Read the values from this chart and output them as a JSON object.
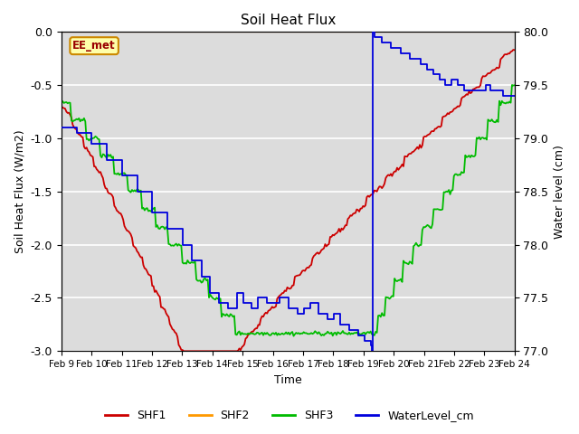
{
  "title": "Soil Heat Flux",
  "xlabel": "Time",
  "ylabel_left": "Soil Heat Flux (W/m2)",
  "ylabel_right": "Water level (cm)",
  "ylim_left": [
    -3.0,
    0.0
  ],
  "ylim_right": [
    77.0,
    80.0
  ],
  "bg_color": "#dcdcdc",
  "legend_label": "EE_met",
  "series_colors": {
    "SHF1": "#cc0000",
    "SHF2": "#ff9900",
    "SHF3": "#00bb00",
    "WaterLevel_cm": "#0000dd"
  },
  "xtick_labels": [
    "Feb 9",
    "Feb 10",
    "Feb 11",
    "Feb 12",
    "Feb 13",
    "Feb 14",
    "Feb 15",
    "Feb 16",
    "Feb 17",
    "Feb 18",
    "Feb 19",
    "Feb 20",
    "Feb 21",
    "Feb 22",
    "Feb 23",
    "Feb 24"
  ],
  "yticks_left": [
    0.0,
    -0.5,
    -1.0,
    -1.5,
    -2.0,
    -2.5,
    -3.0
  ],
  "yticks_right": [
    77.0,
    77.5,
    78.0,
    78.5,
    79.0,
    79.5,
    80.0
  ]
}
